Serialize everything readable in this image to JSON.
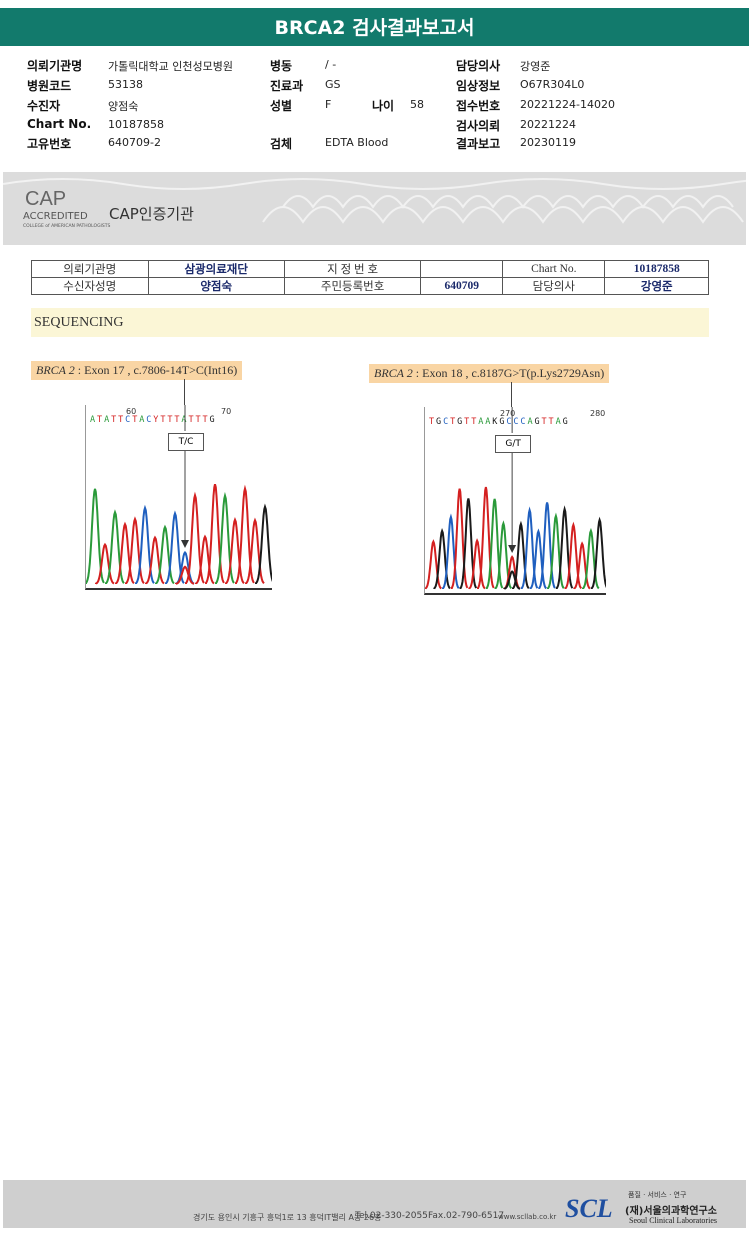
{
  "header": {
    "title": "BRCA2 검사결과보고서"
  },
  "info": {
    "col1": [
      {
        "label": "의뢰기관명",
        "value": "가톨릭대학교 인천성모병원"
      },
      {
        "label": "병원코드",
        "value": "53138"
      },
      {
        "label": "수진자",
        "value": "양점숙"
      },
      {
        "label": "Chart No.",
        "value": "10187858"
      },
      {
        "label": "고유번호",
        "value": "640709-2"
      }
    ],
    "col2": [
      {
        "label": "병동",
        "value": "/ -"
      },
      {
        "label": "진료과",
        "value": "GS"
      },
      {
        "label": "성별",
        "value": "F"
      },
      {
        "label": "검체",
        "value": "EDTA Blood"
      }
    ],
    "age": {
      "label": "나이",
      "value": "58"
    },
    "col3": [
      {
        "label": "담당의사",
        "value": "강영준"
      },
      {
        "label": "임상정보",
        "value": "O67R304L0"
      },
      {
        "label": "접수번호",
        "value": "20221224-14020"
      },
      {
        "label": "검사의뢰",
        "value": "20221224"
      },
      {
        "label": "결과보고",
        "value": "20230119"
      }
    ]
  },
  "cap": {
    "logo": "CAP",
    "accredited": "ACCREDITED",
    "college": "COLLEGE of AMERICAN PATHOLOGISTS",
    "title": "CAP인증기관"
  },
  "table": {
    "rows": [
      [
        "의뢰기관명",
        "삼광의료재단",
        "지 정 번 호",
        "Chart No.",
        "10187858"
      ],
      [
        "수신자성명",
        "양점숙",
        "주민등록번호",
        "640709",
        "담당의사",
        "강영준"
      ]
    ]
  },
  "section": "SEQUENCING",
  "results": [
    {
      "gene": "BRCA 2",
      "desc": " : Exon 17 , c.7806-14T>C(Int16)",
      "ticks": [
        "60",
        "70"
      ],
      "sequence": "ATATTCTACYTTTATTTG",
      "call": "T/C"
    },
    {
      "gene": "BRCA 2",
      "desc": " : Exon 18 , c.8187G>T(p.Lys2729Asn)",
      "ticks": [
        "270",
        "280"
      ],
      "sequence": "TGCTGTTAAKGCCCAGTTAG",
      "call": "G/T"
    }
  ],
  "footer": {
    "address": "경기도 용인시 기흥구 흥덕1로 13 흥덕IT밸리 A동 26층",
    "tel": "Tel.02-330-2055",
    "fax": "Fax.02-790-6517",
    "web": "www.scllab.co.kr",
    "logo": "SCL",
    "motto": "품질 · 서비스 · 연구",
    "org": "(재)서울의과학연구소",
    "org_en": "Seoul Clinical Laboratories"
  }
}
